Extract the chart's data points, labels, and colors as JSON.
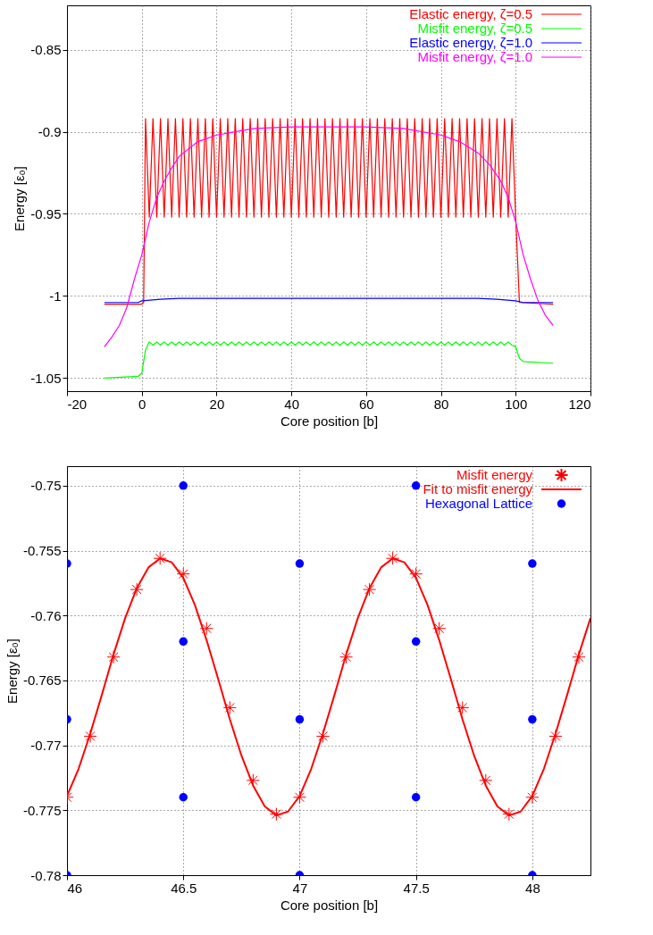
{
  "chart_data": [
    {
      "type": "line",
      "xlabel": "Core position [b]",
      "ylabel": "Energy [ε₀]",
      "xlim": [
        -20,
        120
      ],
      "xticks": [
        -20,
        0,
        20,
        40,
        60,
        80,
        100,
        120
      ],
      "ylim": [
        -1.058,
        -0.823
      ],
      "yticks": [
        -1.05,
        -1,
        -0.95,
        -0.9,
        -0.85
      ],
      "grid": true,
      "legend": "top right",
      "series": [
        {
          "name": "Elastic energy, ζ=0.5",
          "color": "#ff0000",
          "x": [
            -10,
            0,
            0.5,
            1,
            2,
            3,
            4,
            5,
            6,
            7,
            8,
            9,
            10,
            11,
            12,
            13,
            14,
            15,
            16,
            17,
            18,
            19,
            20,
            21,
            22,
            23,
            24,
            25,
            26,
            27,
            28,
            29,
            30,
            31,
            32,
            33,
            34,
            35,
            36,
            37,
            38,
            39,
            40,
            41,
            42,
            43,
            44,
            45,
            46,
            47,
            48,
            49,
            50,
            51,
            52,
            53,
            54,
            55,
            56,
            57,
            58,
            59,
            60,
            61,
            62,
            63,
            64,
            65,
            66,
            67,
            68,
            69,
            70,
            71,
            72,
            73,
            74,
            75,
            76,
            77,
            78,
            79,
            80,
            81,
            82,
            83,
            84,
            85,
            86,
            87,
            88,
            89,
            90,
            91,
            92,
            93,
            94,
            95,
            96,
            97,
            98,
            99,
            100,
            101,
            110
          ],
          "values": [
            -1.005,
            -1.005,
            -1.004,
            -0.892,
            -0.952,
            -0.892,
            -0.952,
            -0.892,
            -0.952,
            -0.892,
            -0.952,
            -0.892,
            -0.952,
            -0.892,
            -0.952,
            -0.892,
            -0.952,
            -0.892,
            -0.952,
            -0.892,
            -0.952,
            -0.892,
            -0.952,
            -0.892,
            -0.952,
            -0.892,
            -0.952,
            -0.892,
            -0.952,
            -0.892,
            -0.952,
            -0.892,
            -0.952,
            -0.892,
            -0.952,
            -0.892,
            -0.952,
            -0.892,
            -0.952,
            -0.892,
            -0.952,
            -0.892,
            -0.952,
            -0.892,
            -0.952,
            -0.892,
            -0.952,
            -0.892,
            -0.952,
            -0.892,
            -0.952,
            -0.892,
            -0.952,
            -0.892,
            -0.952,
            -0.892,
            -0.952,
            -0.892,
            -0.952,
            -0.892,
            -0.952,
            -0.892,
            -0.952,
            -0.892,
            -0.952,
            -0.892,
            -0.952,
            -0.892,
            -0.952,
            -0.892,
            -0.952,
            -0.892,
            -0.952,
            -0.892,
            -0.952,
            -0.892,
            -0.952,
            -0.892,
            -0.952,
            -0.892,
            -0.952,
            -0.892,
            -0.952,
            -0.892,
            -0.952,
            -0.892,
            -0.952,
            -0.892,
            -0.952,
            -0.892,
            -0.952,
            -0.892,
            -0.952,
            -0.892,
            -0.952,
            -0.892,
            -0.952,
            -0.892,
            -0.952,
            -0.892,
            -0.952,
            -0.892,
            -0.952,
            -1.004,
            -1.005
          ]
        },
        {
          "name": "Misfit energy, ζ=0.5",
          "color": "#00ff00",
          "x": [
            -10,
            -1,
            0,
            0.5,
            1,
            2,
            3,
            4,
            5,
            6,
            7,
            8,
            9,
            10,
            11,
            12,
            13,
            14,
            15,
            16,
            17,
            18,
            19,
            20,
            21,
            22,
            23,
            24,
            25,
            26,
            27,
            28,
            29,
            30,
            31,
            32,
            33,
            34,
            35,
            36,
            37,
            38,
            39,
            40,
            41,
            42,
            43,
            44,
            45,
            46,
            47,
            48,
            49,
            50,
            51,
            52,
            53,
            54,
            55,
            56,
            57,
            58,
            59,
            60,
            61,
            62,
            63,
            64,
            65,
            66,
            67,
            68,
            69,
            70,
            71,
            72,
            73,
            74,
            75,
            76,
            77,
            78,
            79,
            80,
            81,
            82,
            83,
            84,
            85,
            86,
            87,
            88,
            89,
            90,
            91,
            92,
            93,
            94,
            95,
            96,
            97,
            98,
            99,
            100,
            101,
            102,
            110
          ],
          "values": [
            -1.05,
            -1.049,
            -1.047,
            -1.04,
            -1.033,
            -1.028,
            -1.03,
            -1.028,
            -1.03,
            -1.028,
            -1.03,
            -1.028,
            -1.03,
            -1.028,
            -1.03,
            -1.028,
            -1.03,
            -1.028,
            -1.03,
            -1.028,
            -1.03,
            -1.028,
            -1.03,
            -1.028,
            -1.03,
            -1.028,
            -1.03,
            -1.028,
            -1.03,
            -1.028,
            -1.03,
            -1.028,
            -1.03,
            -1.028,
            -1.03,
            -1.028,
            -1.03,
            -1.028,
            -1.03,
            -1.028,
            -1.03,
            -1.028,
            -1.03,
            -1.028,
            -1.03,
            -1.028,
            -1.03,
            -1.028,
            -1.03,
            -1.028,
            -1.03,
            -1.028,
            -1.03,
            -1.028,
            -1.03,
            -1.028,
            -1.03,
            -1.028,
            -1.03,
            -1.028,
            -1.03,
            -1.028,
            -1.03,
            -1.028,
            -1.03,
            -1.028,
            -1.03,
            -1.028,
            -1.03,
            -1.028,
            -1.03,
            -1.028,
            -1.03,
            -1.028,
            -1.03,
            -1.028,
            -1.03,
            -1.028,
            -1.03,
            -1.028,
            -1.03,
            -1.028,
            -1.03,
            -1.028,
            -1.03,
            -1.028,
            -1.03,
            -1.028,
            -1.03,
            -1.028,
            -1.03,
            -1.028,
            -1.03,
            -1.028,
            -1.03,
            -1.028,
            -1.03,
            -1.028,
            -1.03,
            -1.028,
            -1.03,
            -1.028,
            -1.03,
            -1.031,
            -1.038,
            -1.04,
            -1.041
          ]
        },
        {
          "name": "Elastic energy, ζ=1.0",
          "color": "#0000ff",
          "x": [
            -10,
            -1,
            0,
            5,
            10,
            90,
            95,
            100,
            102,
            110
          ],
          "values": [
            -1.004,
            -1.004,
            -1.003,
            -1.002,
            -1.0015,
            -1.0015,
            -1.002,
            -1.003,
            -1.004,
            -1.004
          ]
        },
        {
          "name": "Misfit energy, ζ=1.0",
          "color": "#ff00ff",
          "x": [
            -10,
            -8,
            -6,
            -4,
            -2,
            0,
            2,
            4,
            6,
            8,
            10,
            15,
            20,
            30,
            40,
            60,
            70,
            80,
            85,
            90,
            93,
            96,
            98,
            100,
            102,
            104,
            106,
            108,
            110
          ],
          "values": [
            -1.031,
            -1.025,
            -1.018,
            -1.007,
            -0.99,
            -0.975,
            -0.955,
            -0.94,
            -0.93,
            -0.922,
            -0.915,
            -0.906,
            -0.902,
            -0.898,
            -0.897,
            -0.897,
            -0.898,
            -0.902,
            -0.906,
            -0.913,
            -0.92,
            -0.93,
            -0.94,
            -0.955,
            -0.975,
            -0.99,
            -1.003,
            -1.012,
            -1.018
          ]
        }
      ]
    },
    {
      "type": "line",
      "xlabel": "Core position [b]",
      "ylabel": "Energy [ε₀]",
      "xlim": [
        46,
        48.25
      ],
      "xticks": [
        46,
        46.5,
        47,
        47.5,
        48
      ],
      "ylim": [
        -0.78,
        -0.7485
      ],
      "yticks": [
        -0.78,
        -0.775,
        -0.77,
        -0.765,
        -0.76,
        -0.755,
        -0.75
      ],
      "grid": true,
      "legend": "top right",
      "series": [
        {
          "name": "Misfit energy",
          "color": "#ff0000",
          "type": "scatter",
          "marker": "cross",
          "x": [
            46,
            46.1,
            46.2,
            46.3,
            46.4,
            46.5,
            46.6,
            46.7,
            46.8,
            46.9,
            47,
            47.1,
            47.2,
            47.3,
            47.4,
            47.5,
            47.6,
            47.7,
            47.8,
            47.9,
            48,
            48.1,
            48.2
          ],
          "values": [
            -0.774,
            -0.7693,
            -0.7632,
            -0.758,
            -0.7556,
            -0.7568,
            -0.761,
            -0.7671,
            -0.7727,
            -0.7753,
            -0.774,
            -0.7693,
            -0.7632,
            -0.758,
            -0.7556,
            -0.7568,
            -0.761,
            -0.7671,
            -0.7727,
            -0.7753,
            -0.774,
            -0.7693,
            -0.7632
          ]
        },
        {
          "name": "Fit to misfit energy",
          "color": "#ff0000",
          "type": "line",
          "x": [
            46,
            46.05,
            46.1,
            46.15,
            46.2,
            46.25,
            46.3,
            46.35,
            46.4,
            46.45,
            46.5,
            46.55,
            46.6,
            46.65,
            46.7,
            46.75,
            46.8,
            46.85,
            46.9,
            46.95,
            47,
            47.05,
            47.1,
            47.15,
            47.2,
            47.25,
            47.3,
            47.35,
            47.4,
            47.45,
            47.5,
            47.55,
            47.6,
            47.65,
            47.7,
            47.75,
            47.8,
            47.85,
            47.9,
            47.95,
            48,
            48.05,
            48.1,
            48.15,
            48.2,
            48.25
          ],
          "values": [
            -0.7739,
            -0.7718,
            -0.7691,
            -0.7661,
            -0.763,
            -0.7602,
            -0.7579,
            -0.7563,
            -0.7556,
            -0.7559,
            -0.7571,
            -0.7592,
            -0.7619,
            -0.7649,
            -0.768,
            -0.7708,
            -0.7731,
            -0.7747,
            -0.7754,
            -0.7751,
            -0.7739,
            -0.7718,
            -0.7691,
            -0.7661,
            -0.763,
            -0.7602,
            -0.7579,
            -0.7563,
            -0.7556,
            -0.7559,
            -0.7571,
            -0.7592,
            -0.7619,
            -0.7649,
            -0.768,
            -0.7708,
            -0.7731,
            -0.7747,
            -0.7754,
            -0.7751,
            -0.7739,
            -0.7718,
            -0.7691,
            -0.7661,
            -0.763,
            -0.7602
          ]
        },
        {
          "name": "Hexagonal Lattice",
          "color": "#0000ff",
          "type": "scatter",
          "marker": "circle",
          "x": [
            46,
            46,
            46,
            46.5,
            46.5,
            46.5,
            47,
            47,
            47,
            47.5,
            47.5,
            47.5,
            48,
            48,
            48
          ],
          "values": [
            -0.756,
            -0.768,
            -0.78,
            -0.75,
            -0.762,
            -0.774,
            -0.756,
            -0.768,
            -0.78,
            -0.75,
            -0.762,
            -0.774,
            -0.756,
            -0.768,
            -0.78
          ]
        }
      ]
    }
  ]
}
